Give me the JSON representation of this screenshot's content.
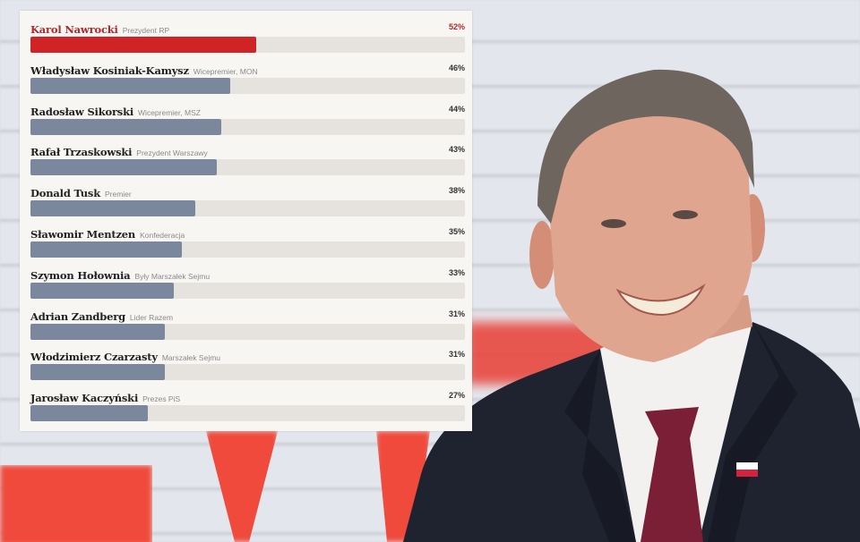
{
  "chart_data": {
    "type": "bar",
    "orientation": "horizontal",
    "title": "",
    "xlabel": "",
    "ylabel": "",
    "categories": [
      "Karol Nawrocki",
      "Władysław Kosiniak-Kamysz",
      "Radosław Sikorski",
      "Rafał Trzaskowski",
      "Donald Tusk",
      "Sławomir Mentzen",
      "Szymon Hołownia",
      "Adrian Zandberg",
      "Włodzimierz Czarzasty",
      "Jarosław Kaczyński"
    ],
    "subtitles": [
      "Prezydent RP",
      "Wicepremier, MON",
      "Wicepremier, MSZ",
      "Prezydent Warszawy",
      "Premier",
      "Konfederacja",
      "Były Marszałek Sejmu",
      "Lider Razem",
      "Marszałek Sejmu",
      "Prezes PiS"
    ],
    "values": [
      52,
      46,
      44,
      43,
      38,
      35,
      33,
      31,
      31,
      27
    ],
    "unit": "%",
    "grid": false,
    "legend": "none",
    "highlight_index": 0
  },
  "colors": {
    "highlight": "#cf2326",
    "bar": "#7a879c",
    "track": "#e6e3df",
    "panel": "#f8f6f3"
  },
  "rows": [
    {
      "name": "Karol Nawrocki",
      "role": "Prezydent RP",
      "pct": "52%"
    },
    {
      "name": "Władysław Kosiniak-Kamysz",
      "role": "Wicepremier, MON",
      "pct": "46%"
    },
    {
      "name": "Radosław Sikorski",
      "role": "Wicepremier, MSZ",
      "pct": "44%"
    },
    {
      "name": "Rafał Trzaskowski",
      "role": "Prezydent Warszawy",
      "pct": "43%"
    },
    {
      "name": "Donald Tusk",
      "role": "Premier",
      "pct": "38%"
    },
    {
      "name": "Sławomir Mentzen",
      "role": "Konfederacja",
      "pct": "35%"
    },
    {
      "name": "Szymon Hołownia",
      "role": "Były Marszałek Sejmu",
      "pct": "33%"
    },
    {
      "name": "Adrian Zandberg",
      "role": "Lider Razem",
      "pct": "31%"
    },
    {
      "name": "Włodzimierz Czarzasty",
      "role": "Marszałek Sejmu",
      "pct": "31%"
    },
    {
      "name": "Jarosław Kaczyński",
      "role": "Prezes PiS",
      "pct": "27%"
    }
  ],
  "photo": {
    "subject": "smiling man in dark suit with white shirt, burgundy tie and Polish flag lapel pin"
  }
}
